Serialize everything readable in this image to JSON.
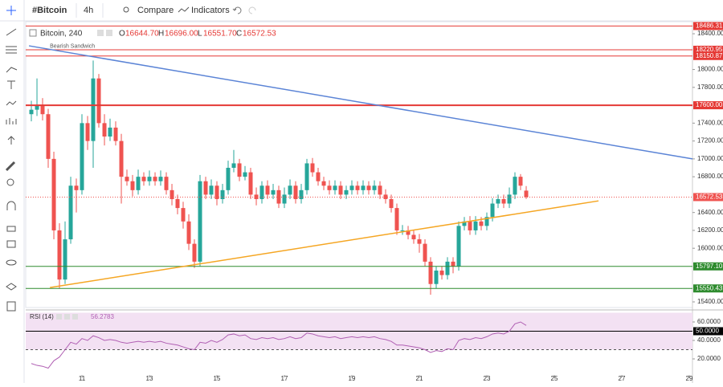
{
  "toolbar": {
    "symbol": "#Bitcoin",
    "interval": "4h",
    "compare": "Compare",
    "indicators": "Indicators"
  },
  "legend": {
    "symbol": "Bitcoin, 240",
    "keys": [
      "O",
      "H",
      "L",
      "C"
    ],
    "values": [
      "16644.70",
      "16696.00",
      "16551.70",
      "16572.53"
    ]
  },
  "chart_data": [
    {
      "type": "candlestick",
      "up_color": "#26a69a",
      "down_color": "#ef5350",
      "x": [
        9.5,
        9.667,
        9.833,
        10,
        10.167,
        10.333,
        10.5,
        10.667,
        10.833,
        11,
        11.167,
        11.333,
        11.5,
        11.667,
        11.833,
        12,
        12.167,
        12.333,
        12.5,
        12.667,
        12.833,
        13,
        13.167,
        13.333,
        13.5,
        13.667,
        13.833,
        14,
        14.167,
        14.333,
        14.5,
        14.667,
        14.833,
        15,
        15.167,
        15.333,
        15.5,
        15.667,
        15.833,
        16,
        16.167,
        16.333,
        16.5,
        16.667,
        16.833,
        17,
        17.167,
        17.333,
        17.5,
        17.667,
        17.833,
        18,
        18.167,
        18.333,
        18.5,
        18.667,
        18.833,
        19,
        19.167,
        19.333,
        19.5,
        19.667,
        19.833,
        20,
        20.167,
        20.333,
        20.5,
        20.667,
        20.833,
        21,
        21.167,
        21.333,
        21.5,
        21.667,
        21.833,
        22,
        22.167,
        22.333,
        22.5,
        22.667,
        22.833,
        23,
        23.167,
        23.333,
        23.5,
        23.667,
        23.833,
        24,
        24.167
      ],
      "open": [
        17500,
        17550,
        17600,
        17500,
        17000,
        16200,
        15650,
        16100,
        16700,
        16650,
        17400,
        17200,
        17900,
        17400,
        17250,
        17350,
        17200,
        16800,
        16750,
        16650,
        16800,
        16750,
        16800,
        16750,
        16800,
        16650,
        16550,
        16450,
        16300,
        16050,
        15850,
        16750,
        16600,
        16700,
        16550,
        16650,
        16900,
        16950,
        16800,
        16850,
        16600,
        16550,
        16700,
        16600,
        16650,
        16500,
        16600,
        16700,
        16550,
        16650,
        16950,
        16850,
        16750,
        16700,
        16650,
        16700,
        16600,
        16650,
        16700,
        16650,
        16700,
        16650,
        16700,
        16600,
        16550,
        16450,
        16200,
        16200,
        16150,
        16100,
        16050,
        15850,
        15600,
        15750,
        15700,
        15850,
        15800,
        16250,
        16300,
        16200,
        16300,
        16250,
        16350,
        16500,
        16550,
        16500,
        16600,
        16800,
        16644.7
      ],
      "high": [
        17650,
        17900,
        17680,
        17560,
        17080,
        16280,
        16300,
        16800,
        16780,
        17500,
        17480,
        18100,
        17950,
        17500,
        17450,
        17420,
        17280,
        16880,
        16820,
        16880,
        16850,
        16870,
        16850,
        16870,
        16850,
        16720,
        16600,
        16520,
        16380,
        16100,
        16820,
        16800,
        16770,
        16750,
        16720,
        16980,
        17100,
        17000,
        16920,
        16900,
        16680,
        16750,
        16760,
        16720,
        16700,
        16680,
        16770,
        16750,
        16720,
        17000,
        17010,
        16900,
        16800,
        16760,
        16760,
        16750,
        16700,
        16760,
        16750,
        16760,
        16750,
        16760,
        16750,
        16660,
        16600,
        16500,
        16260,
        16250,
        16200,
        16160,
        16100,
        15900,
        15800,
        15800,
        15900,
        15900,
        16300,
        16350,
        16360,
        16360,
        16350,
        16400,
        16560,
        16600,
        16600,
        16680,
        16850,
        16830,
        16696
      ],
      "low": [
        17420,
        17480,
        17430,
        16900,
        16100,
        15550,
        15600,
        16050,
        16400,
        16600,
        17100,
        16900,
        17350,
        17150,
        17200,
        17150,
        16500,
        16700,
        16580,
        16600,
        16700,
        16700,
        16700,
        16700,
        16600,
        16480,
        16380,
        16220,
        15980,
        15780,
        15800,
        16550,
        16550,
        16480,
        16500,
        16600,
        16850,
        16750,
        16760,
        16550,
        16480,
        16500,
        16550,
        16550,
        16450,
        16450,
        16550,
        16500,
        16500,
        16600,
        16800,
        16700,
        16650,
        16600,
        16600,
        16550,
        16550,
        16600,
        16600,
        16600,
        16600,
        16600,
        16550,
        16500,
        16400,
        16150,
        16150,
        16100,
        16050,
        15950,
        15800,
        15480,
        15550,
        15650,
        15650,
        15720,
        15750,
        16200,
        16150,
        16150,
        16200,
        16200,
        16300,
        16450,
        16450,
        16450,
        16550,
        16650,
        16551.7
      ],
      "close": [
        17550,
        17600,
        17500,
        17000,
        16200,
        15650,
        16100,
        16700,
        16650,
        17400,
        17200,
        17900,
        17400,
        17250,
        17350,
        17200,
        16800,
        16750,
        16650,
        16800,
        16750,
        16800,
        16750,
        16800,
        16650,
        16550,
        16450,
        16300,
        16050,
        15850,
        16750,
        16600,
        16700,
        16550,
        16650,
        16900,
        16950,
        16800,
        16850,
        16600,
        16550,
        16700,
        16600,
        16650,
        16500,
        16600,
        16700,
        16550,
        16650,
        16950,
        16850,
        16750,
        16700,
        16650,
        16700,
        16600,
        16650,
        16700,
        16650,
        16700,
        16650,
        16700,
        16600,
        16550,
        16450,
        16200,
        16200,
        16150,
        16100,
        16050,
        15850,
        15600,
        15750,
        15700,
        15850,
        15800,
        16250,
        16300,
        16200,
        16300,
        16250,
        16350,
        16500,
        16550,
        16500,
        16600,
        16800,
        16700,
        16572.53
      ],
      "xlim": [
        9.333,
        29.095
      ],
      "ylim": [
        15337,
        18535
      ],
      "xticks": [
        11,
        13,
        15,
        17,
        19,
        21,
        23,
        25,
        27,
        29
      ],
      "yticks": [
        {
          "value": 18400,
          "label": "18400.00"
        },
        {
          "value": 18000,
          "label": "18000.00"
        },
        {
          "value": 17800,
          "label": "17800.00"
        },
        {
          "value": 17400,
          "label": "17400.00"
        },
        {
          "value": 17200,
          "label": "17200.00"
        },
        {
          "value": 17000,
          "label": "17000.00"
        },
        {
          "value": 16800,
          "label": "16800.00"
        },
        {
          "value": 16400,
          "label": "16400.00"
        },
        {
          "value": 16200,
          "label": "16200.00"
        },
        {
          "value": 16000,
          "label": "16000.00"
        },
        {
          "value": 15400,
          "label": "15400.00"
        }
      ],
      "hlines": [
        {
          "value": 18486.31,
          "label": "18486.31",
          "color": "#e53935"
        },
        {
          "value": 18220.95,
          "label": "18220.95",
          "color": "#e53935"
        },
        {
          "value": 18150.87,
          "label": "18150.87",
          "color": "#e53935"
        },
        {
          "value": 17600,
          "label": "17600.00",
          "color": "#e53935",
          "width": 2
        },
        {
          "value": 15797.1,
          "label": "15797.10",
          "color": "#2e8b2e"
        },
        {
          "value": 15550.43,
          "label": "15550.43",
          "color": "#2e8b2e"
        }
      ],
      "trendlines": [
        {
          "color": "#5b84d6",
          "x": [
            9.43,
            29.095
          ],
          "y": [
            18265,
            17000
          ]
        },
        {
          "color": "#f5a623",
          "x": [
            10.05,
            26.31
          ],
          "y": [
            15560,
            16530
          ]
        }
      ],
      "annotation": {
        "text": "Bearish Sandwich",
        "x": 10.05,
        "y": 18260
      }
    },
    {
      "type": "line",
      "title": "RSI (14)",
      "color": "#b05fb3",
      "values": [
        15,
        13,
        12,
        10,
        18,
        22,
        30,
        38,
        36,
        42,
        40,
        45,
        43,
        40,
        41,
        40,
        38,
        37,
        38,
        39,
        38,
        39,
        38,
        39,
        37,
        36,
        35,
        33,
        31,
        30,
        38,
        37,
        40,
        38,
        41,
        46,
        47,
        45,
        46,
        42,
        41,
        43,
        42,
        43,
        41,
        42,
        44,
        42,
        43,
        48,
        47,
        45,
        44,
        43,
        44,
        42,
        43,
        44,
        43,
        44,
        43,
        44,
        42,
        41,
        39,
        35,
        35,
        34,
        33,
        32,
        30,
        27,
        29,
        28,
        31,
        30,
        40,
        42,
        41,
        43,
        42,
        44,
        47,
        48,
        47,
        50,
        58,
        60,
        56.2783
      ],
      "ylim": [
        0,
        71.3
      ],
      "band": [
        30,
        70
      ],
      "midline": {
        "value": 50,
        "label": "50.0000"
      },
      "yticks": [
        {
          "value": 60,
          "label": "60.0000"
        },
        {
          "value": 40,
          "label": "40.0000"
        },
        {
          "value": 20,
          "label": "20.0000"
        }
      ]
    }
  ]
}
